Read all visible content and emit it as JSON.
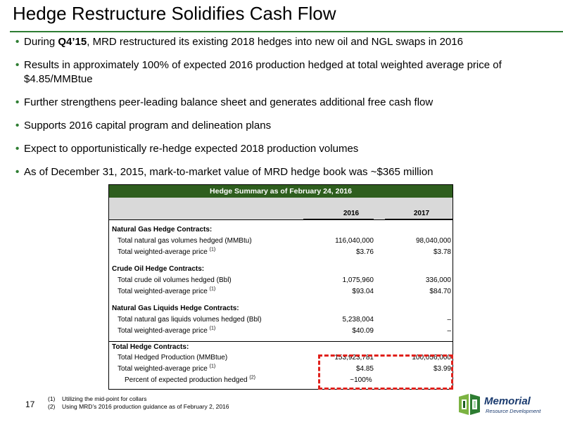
{
  "title": "Hedge Restructure Solidifies Cash Flow",
  "bullets": [
    {
      "pre": "During ",
      "bold": "Q4’15",
      "post": ", MRD restructured its existing 2018 hedges into new oil and NGL swaps in 2016"
    },
    {
      "text": "Results in approximately 100% of expected 2016 production hedged at total weighted average price of $4.85/MMBtue"
    },
    {
      "text": "Further strengthens peer-leading balance sheet and generates additional free cash flow"
    },
    {
      "text": "Supports 2016 capital program and delineation plans"
    },
    {
      "text": "Expect to opportunistically re-hedge expected 2018 production volumes"
    },
    {
      "text": "As of December 31, 2015, mark-to-market value of MRD hedge book was ~$365 million"
    }
  ],
  "table": {
    "header": "Hedge Summary as of February 24, 2016",
    "columns": [
      "2016",
      "2017"
    ],
    "sections": [
      {
        "title": "Natural Gas Hedge Contracts:",
        "rows": [
          {
            "label": "Total natural gas volumes hedged (MMBtu)",
            "sup": "",
            "v2016": "116,040,000",
            "v2017": "98,040,000"
          },
          {
            "label": "Total weighted-average price",
            "sup": "(1)",
            "v2016": "$3.76",
            "v2017": "$3.78"
          }
        ]
      },
      {
        "title": "Crude Oil Hedge Contracts:",
        "rows": [
          {
            "label": "Total crude oil volumes hedged (Bbl)",
            "sup": "",
            "v2016": "1,075,960",
            "v2017": "336,000"
          },
          {
            "label": "Total weighted-average price",
            "sup": "(1)",
            "v2016": "$93.04",
            "v2017": "$84.70"
          }
        ]
      },
      {
        "title": "Natural Gas Liquids Hedge Contracts:",
        "rows": [
          {
            "label": "Total natural gas liquids volumes hedged (Bbl)",
            "sup": "",
            "v2016": "5,238,004",
            "v2017": "–"
          },
          {
            "label": "Total weighted-average price",
            "sup": "(1)",
            "v2016": "$40.09",
            "v2017": "–"
          }
        ]
      },
      {
        "title": "Total Hedge Contracts:",
        "rows": [
          {
            "label": "Total Hedged Production (MMBtue)",
            "sup": "",
            "v2016": "153,923,781",
            "v2017": "100,056,000"
          },
          {
            "label": "Total weighted-average price",
            "sup": "(1)",
            "v2016": "$4.85",
            "v2017": "$3.99"
          },
          {
            "label": "Percent of expected production hedged",
            "sup": "(2)",
            "v2016": "~100%",
            "v2017": ""
          }
        ]
      }
    ]
  },
  "footnotes": [
    {
      "num": "(1)",
      "text": "Utilizing the mid-point for collars"
    },
    {
      "num": "(2)",
      "text": "Using MRD’s 2016 production guidance as of February 2, 2016"
    }
  ],
  "page_number": "17",
  "logo": {
    "name": "Memorial",
    "subtitle": "Resource Development"
  },
  "colors": {
    "accent_green": "#2e7d32",
    "table_header": "#2e5e1e",
    "highlight_red": "#e0201b",
    "logo_blue": "#1b3b6f"
  }
}
